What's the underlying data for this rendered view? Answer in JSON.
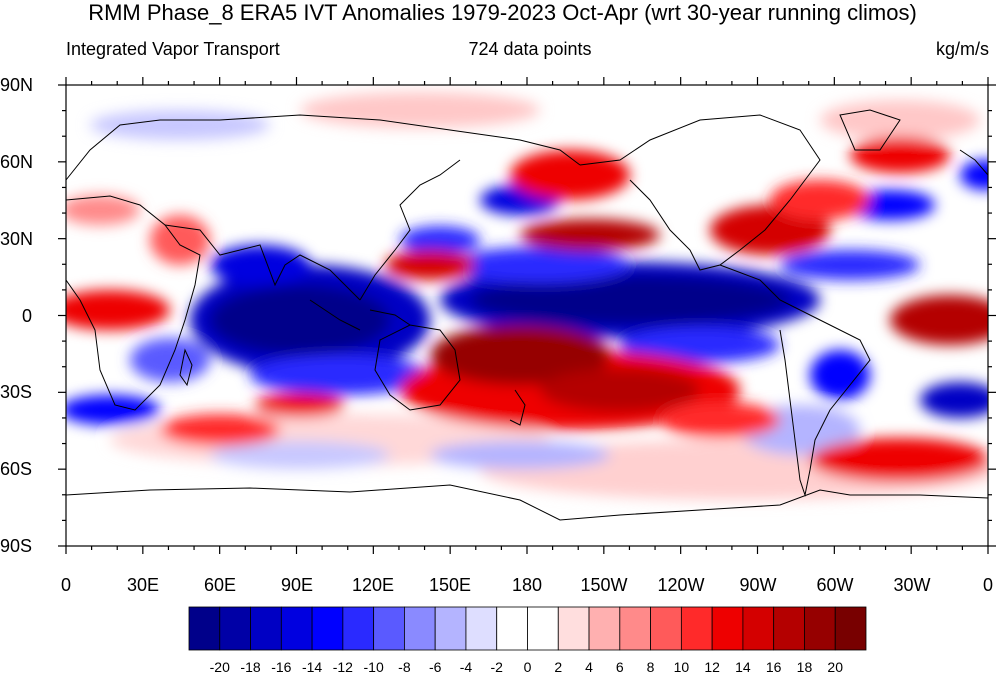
{
  "title": "RMM Phase_8 ERA5 IVT Anomalies 1979-2023 Oct-Apr (wrt 30-year running climos)",
  "subtitle_left": "Integrated Vapor Transport",
  "subtitle_center": "724 data points",
  "subtitle_right": "kg/m/s",
  "map": {
    "projection": "cylindrical-equidistant",
    "lon_range": [
      0,
      360
    ],
    "lat_range": [
      -90,
      90
    ],
    "lat_ticks": [
      "90N",
      "60N",
      "30N",
      "0",
      "30S",
      "60S",
      "90S"
    ],
    "lon_ticks": [
      "0",
      "30E",
      "60E",
      "90E",
      "120E",
      "150E",
      "180",
      "150W",
      "120W",
      "90W",
      "60W",
      "30W",
      "0"
    ],
    "coastlines": true
  },
  "colorbar": {
    "labels": [
      "-20",
      "-18",
      "-16",
      "-14",
      "-12",
      "-10",
      "-8",
      "-6",
      "-4",
      "-2",
      "0",
      "2",
      "4",
      "6",
      "8",
      "10",
      "12",
      "14",
      "16",
      "18",
      "20"
    ],
    "colors": [
      "#00008a",
      "#0000a6",
      "#0000c4",
      "#0000e0",
      "#0000ff",
      "#2a2aff",
      "#5a5aff",
      "#8a8aff",
      "#b4b4ff",
      "#dedeff",
      "#ffffff",
      "#ffffff",
      "#ffdede",
      "#ffb0b0",
      "#ff8a8a",
      "#ff5a5a",
      "#ff2a2a",
      "#ee0000",
      "#d40000",
      "#b40000",
      "#960000",
      "#780000"
    ]
  }
}
